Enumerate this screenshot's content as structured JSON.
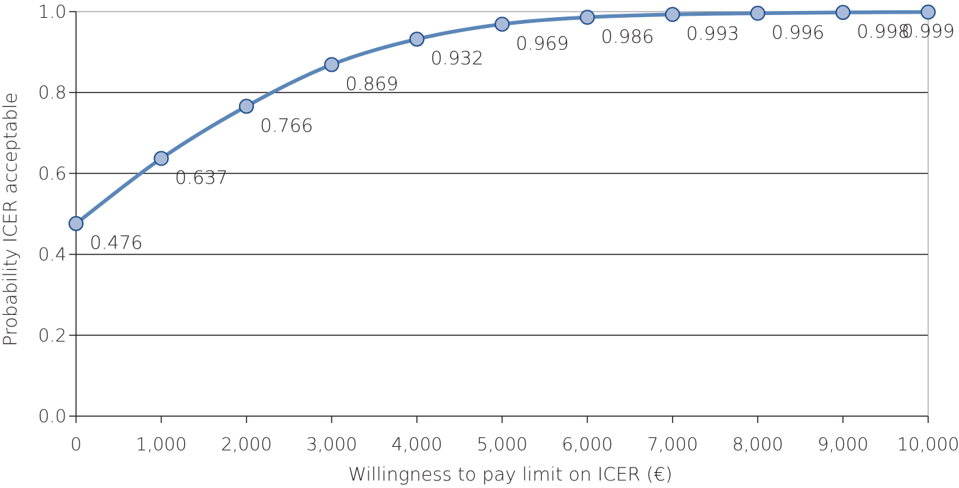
{
  "chart_data": {
    "type": "line",
    "title": "",
    "xlabel": "Willingness to pay limit on ICER (€)",
    "ylabel": "Probability ICER acceptable",
    "x": [
      0,
      1000,
      2000,
      3000,
      4000,
      5000,
      6000,
      7000,
      8000,
      9000,
      10000
    ],
    "x_tick_labels": [
      "0",
      "1,000",
      "2,000",
      "3,000",
      "4,000",
      "5,000",
      "6,000",
      "7,000",
      "8,000",
      "9,000",
      "10,000"
    ],
    "y_tick_values": [
      0.0,
      0.2,
      0.4,
      0.6,
      0.8,
      1.0
    ],
    "y_tick_labels": [
      "0.0",
      "0.2",
      "0.4",
      "0.6",
      "0.8",
      "1.0"
    ],
    "series": [
      {
        "values": [
          0.476,
          0.637,
          0.766,
          0.869,
          0.932,
          0.969,
          0.986,
          0.993,
          0.996,
          0.998,
          0.999
        ],
        "labels": [
          "0.476",
          "0.637",
          "0.766",
          "0.869",
          "0.932",
          "0.969",
          "0.986",
          "0.993",
          "0.996",
          "0.998",
          "0.999"
        ]
      }
    ],
    "xlim": [
      0,
      10000
    ],
    "ylim": [
      0,
      1.0
    ],
    "grid": "horizontal",
    "legend": "none",
    "colors": {
      "line": "#5b86b8",
      "marker_fill": "#a9bbd9",
      "marker_stroke": "#1f4e8c",
      "gridline": "#231f20",
      "axis": "#231f20",
      "right_border": "#9a9a9a"
    }
  }
}
